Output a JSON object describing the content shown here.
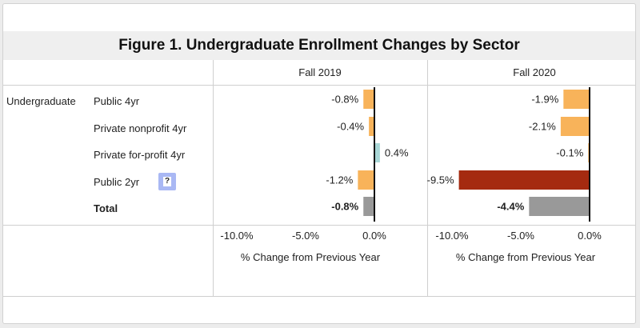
{
  "title": "Figure 1. Undergraduate Enrollment Changes by Sector",
  "row_group": "Undergraduate",
  "help_glyph": "?",
  "columns": [
    "Fall 2019",
    "Fall 2020"
  ],
  "rows": [
    "Public 4yr",
    "Private nonprofit 4yr",
    "Private for-profit 4yr",
    "Public 2yr",
    "Total"
  ],
  "axis_title": "% Change from Previous Year",
  "colors": {
    "orange": "#f8b35a",
    "teal": "#a9d7d7",
    "dark_red": "#a52a10",
    "gray": "#999999",
    "zero_line": "#111111"
  },
  "chart_data": [
    {
      "type": "bar",
      "orientation": "horizontal",
      "title": "Fall 2019",
      "categories": [
        "Public 4yr",
        "Private nonprofit 4yr",
        "Private for-profit 4yr",
        "Public 2yr",
        "Total"
      ],
      "values": [
        -0.8,
        -0.4,
        0.4,
        -1.2,
        -0.8
      ],
      "labels": [
        "-0.8%",
        "-0.4%",
        "0.4%",
        "-1.2%",
        "-0.8%"
      ],
      "bar_colors": [
        "#f8b35a",
        "#f8b35a",
        "#a9d7d7",
        "#f8b35a",
        "#999999"
      ],
      "xlabel": "% Change from Previous Year",
      "xlim": [
        -12.5,
        0.8
      ],
      "xticks": [
        -10,
        -5,
        0
      ],
      "xtick_labels": [
        "-10.0%",
        "-5.0%",
        "0.0%"
      ]
    },
    {
      "type": "bar",
      "orientation": "horizontal",
      "title": "Fall 2020",
      "categories": [
        "Public 4yr",
        "Private nonprofit 4yr",
        "Private for-profit 4yr",
        "Public 2yr",
        "Total"
      ],
      "values": [
        -1.9,
        -2.1,
        -0.1,
        -9.5,
        -4.4
      ],
      "labels": [
        "-1.9%",
        "-2.1%",
        "-0.1%",
        "-9.5%",
        "-4.4%"
      ],
      "bar_colors": [
        "#f8b35a",
        "#f8b35a",
        "#f8b35a",
        "#a52a10",
        "#999999"
      ],
      "xlabel": "% Change from Previous Year",
      "xlim": [
        -12.5,
        0.8
      ],
      "xticks": [
        -10,
        -5,
        0
      ],
      "xtick_labels": [
        "-10.0%",
        "-5.0%",
        "0.0%"
      ]
    }
  ]
}
